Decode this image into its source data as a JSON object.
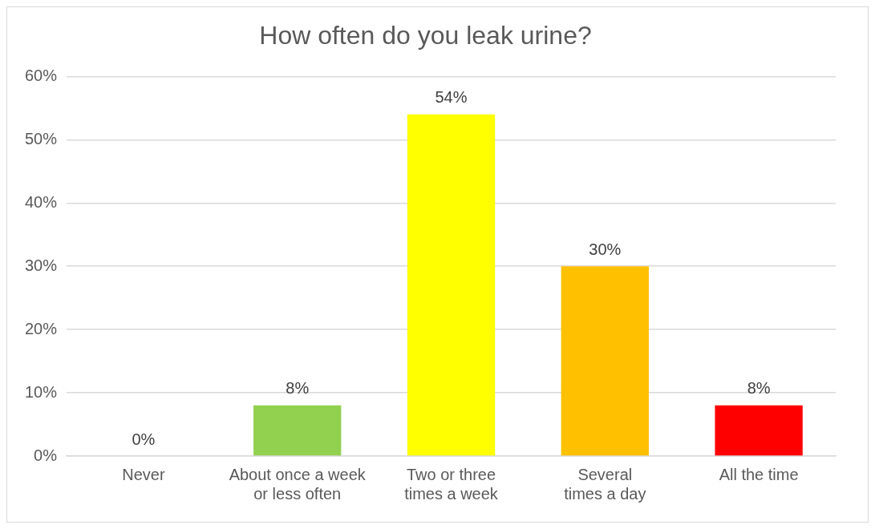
{
  "chart_data": {
    "type": "bar",
    "title": "How often do you leak urine?",
    "categories": [
      "Never",
      "About once a week or less often",
      "Two or three times a week",
      "Several times a day",
      "All the time"
    ],
    "values": [
      0,
      8,
      54,
      30,
      8
    ],
    "colors": [
      "#5b9bd5",
      "#92d050",
      "#ffff00",
      "#ffc000",
      "#ff0000"
    ],
    "value_labels": [
      "0%",
      "8%",
      "54%",
      "30%",
      "8%"
    ],
    "ylim": [
      0,
      60
    ],
    "yticks": [
      {
        "value": 0,
        "label": "0%"
      },
      {
        "value": 10,
        "label": "10%"
      },
      {
        "value": 20,
        "label": "20%"
      },
      {
        "value": 30,
        "label": "30%"
      },
      {
        "value": 40,
        "label": "40%"
      },
      {
        "value": 50,
        "label": "50%"
      },
      {
        "value": 60,
        "label": "60%"
      }
    ],
    "grid": "y",
    "legend": false
  }
}
